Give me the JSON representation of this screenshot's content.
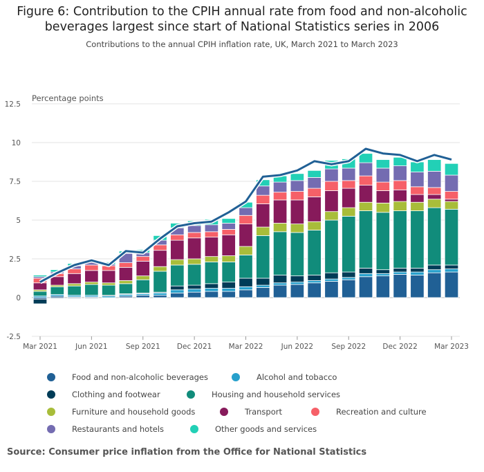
{
  "title": "Figure 6: Contribution to the CPIH annual rate from food and non-alcoholic beverages largest since start of National Statistics series in 2006",
  "subtitle": "Contributions to the annual CPIH inflation rate, UK, March 2021 to March 2023",
  "source": "Source: Consumer price inflation from the Office for National Statistics",
  "chart_data": {
    "type": "bar",
    "stacked": true,
    "ylabel": "Percentage points",
    "ylim": [
      -2.5,
      12.5
    ],
    "yticks": [
      -2.5,
      0,
      2.5,
      5,
      7.5,
      10,
      12.5
    ],
    "ytick_labels": [
      "-2.5",
      "0",
      "2.5",
      "5",
      "7.5",
      "10",
      "12.5"
    ],
    "grid": true,
    "legend_position": "bottom",
    "categories": [
      "Mar 2021",
      "Apr 2021",
      "May 2021",
      "Jun 2021",
      "Jul 2021",
      "Aug 2021",
      "Sep 2021",
      "Oct 2021",
      "Nov 2021",
      "Dec 2021",
      "Jan 2022",
      "Feb 2022",
      "Mar 2022",
      "Apr 2022",
      "May 2022",
      "Jun 2022",
      "Jul 2022",
      "Aug 2022",
      "Sep 2022",
      "Oct 2022",
      "Nov 2022",
      "Dec 2022",
      "Jan 2023",
      "Feb 2023",
      "Mar 2023"
    ],
    "x_tick_labels": {
      "0": "Mar 2021",
      "3": "Jun 2021",
      "6": "Sep 2021",
      "9": "Dec 2021",
      "12": "Mar 2022",
      "15": "Jun 2022",
      "18": "Sep 2022",
      "21": "Dec 2022",
      "24": "Mar 2023"
    },
    "series": [
      {
        "name": "Food and non-alcoholic beverages",
        "color": "#206095",
        "values": [
          -0.1,
          0.1,
          0.05,
          0.05,
          0.0,
          0.1,
          0.15,
          0.15,
          0.3,
          0.35,
          0.4,
          0.4,
          0.5,
          0.65,
          0.8,
          0.85,
          0.95,
          1.05,
          1.15,
          1.35,
          1.4,
          1.5,
          1.45,
          1.6,
          1.65
        ]
      },
      {
        "name": "Alcohol and tobacco",
        "color": "#27a0cc",
        "values": [
          0.1,
          0.1,
          0.1,
          0.1,
          0.1,
          0.1,
          0.1,
          0.15,
          0.2,
          0.2,
          0.2,
          0.2,
          0.2,
          0.15,
          0.15,
          0.15,
          0.15,
          0.15,
          0.15,
          0.2,
          0.15,
          0.15,
          0.2,
          0.2,
          0.2
        ]
      },
      {
        "name": "Clothing and footwear",
        "color": "#003c57",
        "values": [
          -0.3,
          -0.05,
          -0.05,
          -0.05,
          0.05,
          0.05,
          0.05,
          0.05,
          0.25,
          0.25,
          0.3,
          0.4,
          0.55,
          0.45,
          0.5,
          0.4,
          0.35,
          0.4,
          0.35,
          0.35,
          0.25,
          0.25,
          0.25,
          0.3,
          0.25
        ]
      },
      {
        "name": "Housing and household services",
        "color": "#118c7b",
        "values": [
          0.3,
          0.5,
          0.6,
          0.7,
          0.65,
          0.65,
          0.85,
          1.35,
          1.35,
          1.35,
          1.4,
          1.3,
          1.5,
          2.75,
          2.8,
          2.8,
          2.9,
          3.4,
          3.6,
          3.7,
          3.7,
          3.7,
          3.7,
          3.7,
          3.6
        ]
      },
      {
        "name": "Furniture and household goods",
        "color": "#a8bd3a",
        "values": [
          0.1,
          0.1,
          0.15,
          0.15,
          0.15,
          0.2,
          0.25,
          0.3,
          0.35,
          0.35,
          0.35,
          0.4,
          0.55,
          0.55,
          0.55,
          0.55,
          0.55,
          0.55,
          0.55,
          0.55,
          0.6,
          0.6,
          0.55,
          0.55,
          0.5
        ]
      },
      {
        "name": "Transport",
        "color": "#871a5b",
        "values": [
          0.45,
          0.55,
          0.65,
          0.75,
          0.8,
          0.85,
          0.95,
          1.05,
          1.25,
          1.35,
          1.25,
          1.35,
          1.45,
          1.5,
          1.5,
          1.55,
          1.6,
          1.35,
          1.25,
          1.1,
          0.8,
          0.75,
          0.5,
          0.3,
          0.15
        ]
      },
      {
        "name": "Recreation and culture",
        "color": "#f66068",
        "values": [
          0.3,
          0.2,
          0.3,
          0.35,
          0.3,
          0.3,
          0.3,
          0.35,
          0.35,
          0.35,
          0.35,
          0.35,
          0.55,
          0.55,
          0.5,
          0.55,
          0.55,
          0.6,
          0.5,
          0.6,
          0.55,
          0.6,
          0.5,
          0.45,
          0.5
        ]
      },
      {
        "name": "Restaurants and hotels",
        "color": "#746cb1",
        "values": [
          0.1,
          0.1,
          0.2,
          0.2,
          0.1,
          0.6,
          0.25,
          0.3,
          0.45,
          0.45,
          0.45,
          0.4,
          0.5,
          0.6,
          0.65,
          0.7,
          0.7,
          0.8,
          0.8,
          0.85,
          0.9,
          0.95,
          0.95,
          1.05,
          1.05
        ]
      },
      {
        "name": "Other goods and services",
        "color": "#22d0b6",
        "values": [
          0.1,
          0.15,
          0.15,
          0.15,
          0.15,
          0.15,
          0.2,
          0.3,
          0.3,
          0.3,
          0.35,
          0.3,
          0.35,
          0.4,
          0.4,
          0.45,
          0.45,
          0.55,
          0.6,
          0.6,
          0.55,
          0.55,
          0.65,
          0.75,
          0.75
        ]
      }
    ],
    "line": {
      "name": "CPIH annual rate",
      "color": "#206095",
      "values": [
        1.0,
        1.6,
        2.1,
        2.4,
        2.1,
        3.0,
        2.9,
        3.8,
        4.6,
        4.8,
        4.9,
        5.5,
        6.2,
        7.8,
        7.9,
        8.2,
        8.8,
        8.6,
        8.8,
        9.6,
        9.3,
        9.2,
        8.8,
        9.2,
        8.9
      ]
    }
  }
}
